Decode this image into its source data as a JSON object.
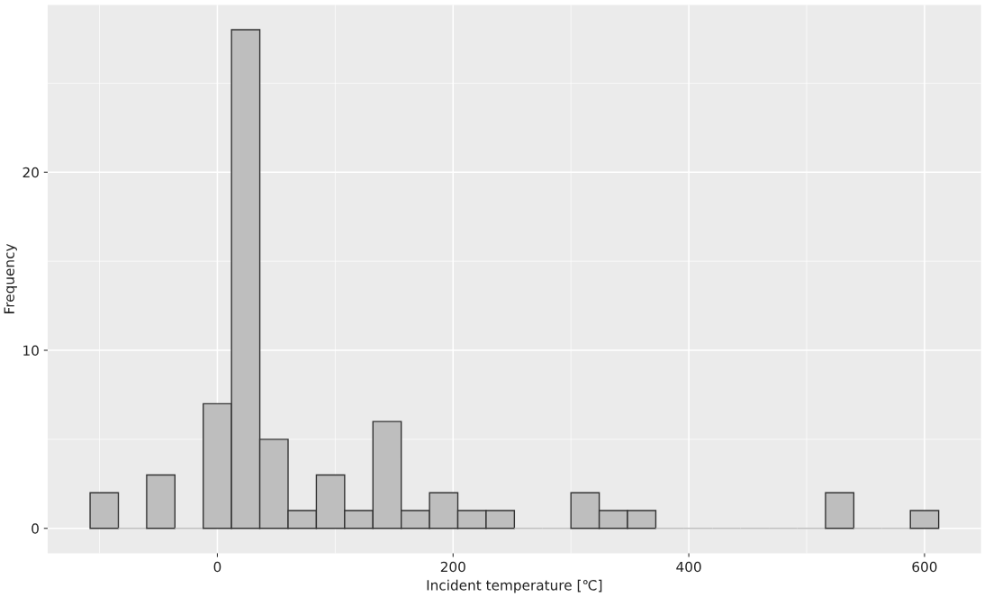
{
  "chart_data": {
    "type": "histogram",
    "xlabel": "Incident temperature [℃]",
    "ylabel": "Frequency",
    "bins": [
      -108,
      -84,
      -60,
      -36,
      -12,
      12,
      36,
      60,
      84,
      108,
      132,
      156,
      180,
      204,
      228,
      252,
      276,
      300,
      324,
      348,
      372,
      396,
      420,
      444,
      468,
      492,
      516,
      540,
      564,
      588,
      612
    ],
    "values": [
      2,
      0,
      3,
      0,
      7,
      28,
      5,
      1,
      3,
      1,
      6,
      1,
      2,
      1,
      1,
      0,
      0,
      2,
      1,
      1,
      0,
      0,
      0,
      0,
      0,
      0,
      2,
      0,
      0,
      1
    ],
    "color": "#bebebe",
    "xlim": [
      -144,
      648
    ],
    "ylim": [
      -1.4,
      29.4
    ],
    "xticks": [
      0,
      200,
      400,
      600
    ],
    "yticks": [
      0,
      10,
      20
    ],
    "grid": true
  }
}
